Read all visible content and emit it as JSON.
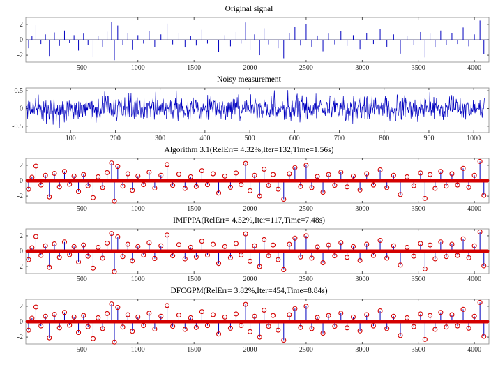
{
  "colors": {
    "signal_blue": "#0000bf",
    "marker_red": "#d40000",
    "axis_box": "#888888",
    "tick_text": "#262626",
    "baseline": "#333366",
    "background": "#ffffff"
  },
  "chart_data": [
    {
      "type": "stem",
      "title": "Original signal",
      "xlim": [
        0,
        4130
      ],
      "ylim": [
        -2.9,
        2.9
      ],
      "xticks": [
        500,
        1000,
        1500,
        2000,
        2500,
        3000,
        3500,
        4000
      ],
      "yticks": [
        -2,
        0,
        2
      ],
      "spikes": [
        [
          25,
          -1.1
        ],
        [
          55,
          0.45
        ],
        [
          90,
          1.9
        ],
        [
          135,
          -0.55
        ],
        [
          175,
          0.7
        ],
        [
          210,
          -2.1
        ],
        [
          255,
          0.95
        ],
        [
          300,
          -0.8
        ],
        [
          345,
          1.2
        ],
        [
          390,
          -0.45
        ],
        [
          430,
          0.6
        ],
        [
          470,
          -1.4
        ],
        [
          515,
          0.8
        ],
        [
          555,
          -0.65
        ],
        [
          600,
          -2.2
        ],
        [
          645,
          0.5
        ],
        [
          685,
          -0.9
        ],
        [
          725,
          1.05
        ],
        [
          765,
          2.3
        ],
        [
          790,
          -2.65
        ],
        [
          820,
          1.85
        ],
        [
          865,
          -0.7
        ],
        [
          910,
          0.9
        ],
        [
          950,
          -1.25
        ],
        [
          1000,
          0.6
        ],
        [
          1050,
          -0.5
        ],
        [
          1100,
          1.1
        ],
        [
          1150,
          -0.95
        ],
        [
          1205,
          0.7
        ],
        [
          1260,
          2.1
        ],
        [
          1310,
          -0.6
        ],
        [
          1365,
          0.85
        ],
        [
          1420,
          -1.0
        ],
        [
          1470,
          0.5
        ],
        [
          1520,
          -0.75
        ],
        [
          1570,
          1.3
        ],
        [
          1620,
          -0.5
        ],
        [
          1670,
          0.9
        ],
        [
          1720,
          -1.6
        ],
        [
          1775,
          0.6
        ],
        [
          1825,
          -0.85
        ],
        [
          1875,
          1.0
        ],
        [
          1920,
          -0.5
        ],
        [
          1960,
          2.25
        ],
        [
          2000,
          -1.3
        ],
        [
          2040,
          0.7
        ],
        [
          2085,
          -2.0
        ],
        [
          2125,
          1.5
        ],
        [
          2165,
          -0.6
        ],
        [
          2205,
          0.8
        ],
        [
          2250,
          -1.1
        ],
        [
          2300,
          -2.4
        ],
        [
          2350,
          0.9
        ],
        [
          2400,
          1.7
        ],
        [
          2450,
          -0.75
        ],
        [
          2500,
          2.0
        ],
        [
          2550,
          -0.9
        ],
        [
          2600,
          0.55
        ],
        [
          2650,
          -1.5
        ],
        [
          2700,
          0.8
        ],
        [
          2755,
          -0.6
        ],
        [
          2810,
          1.1
        ],
        [
          2865,
          -0.8
        ],
        [
          2920,
          0.6
        ],
        [
          2980,
          -1.2
        ],
        [
          3040,
          0.9
        ],
        [
          3100,
          -0.55
        ],
        [
          3160,
          1.4
        ],
        [
          3220,
          -0.9
        ],
        [
          3280,
          0.7
        ],
        [
          3340,
          -1.8
        ],
        [
          3400,
          0.5
        ],
        [
          3460,
          -0.65
        ],
        [
          3520,
          1.0
        ],
        [
          3560,
          -2.3
        ],
        [
          3605,
          0.8
        ],
        [
          3650,
          -1.0
        ],
        [
          3700,
          1.2
        ],
        [
          3750,
          -0.7
        ],
        [
          3800,
          0.9
        ],
        [
          3850,
          -0.55
        ],
        [
          3900,
          1.6
        ],
        [
          3950,
          -0.85
        ],
        [
          4000,
          0.7
        ],
        [
          4050,
          2.5
        ],
        [
          4085,
          -1.9
        ]
      ]
    },
    {
      "type": "line",
      "title": "Noisy measurement",
      "xlim": [
        0,
        1034
      ],
      "ylim": [
        -0.68,
        0.58
      ],
      "xticks": [
        100,
        200,
        300,
        400,
        500,
        600,
        700,
        800,
        900,
        1000
      ],
      "yticks": [
        -0.5,
        0,
        0.5
      ],
      "noise": {
        "n": 1024,
        "seed": 11,
        "scale": 0.29,
        "burst_prob": 0.05,
        "burst_gain": 1.8,
        "clip_lo": -0.63,
        "clip_hi": 0.55
      }
    },
    {
      "type": "stem-recovered",
      "title": "Algorithm 3.1(RelErr= 4.32%,Iter=132,Time=1.56s)",
      "xlim": [
        0,
        4130
      ],
      "ylim": [
        -2.9,
        2.9
      ],
      "xticks": [
        500,
        1000,
        1500,
        2000,
        2500,
        3000,
        3500,
        4000
      ],
      "yticks": [
        -2,
        0,
        2
      ],
      "spikes_ref": 0
    },
    {
      "type": "stem-recovered",
      "title": "IMFPPA(RelErr= 4.52%,Iter=117,Time=7.48s)",
      "xlim": [
        0,
        4130
      ],
      "ylim": [
        -2.9,
        2.9
      ],
      "xticks": [
        500,
        1000,
        1500,
        2000,
        2500,
        3000,
        3500,
        4000
      ],
      "yticks": [
        -2,
        0,
        2
      ],
      "spikes_ref": 0
    },
    {
      "type": "stem-recovered",
      "title": "DFCGPM(RelErr= 3.82%,Iter=454,Time=8.84s)",
      "xlim": [
        0,
        4130
      ],
      "ylim": [
        -2.9,
        2.9
      ],
      "xticks": [
        500,
        1000,
        1500,
        2000,
        2500,
        3000,
        3500,
        4000
      ],
      "yticks": [
        -2,
        0,
        2
      ],
      "spikes_ref": 0
    }
  ]
}
